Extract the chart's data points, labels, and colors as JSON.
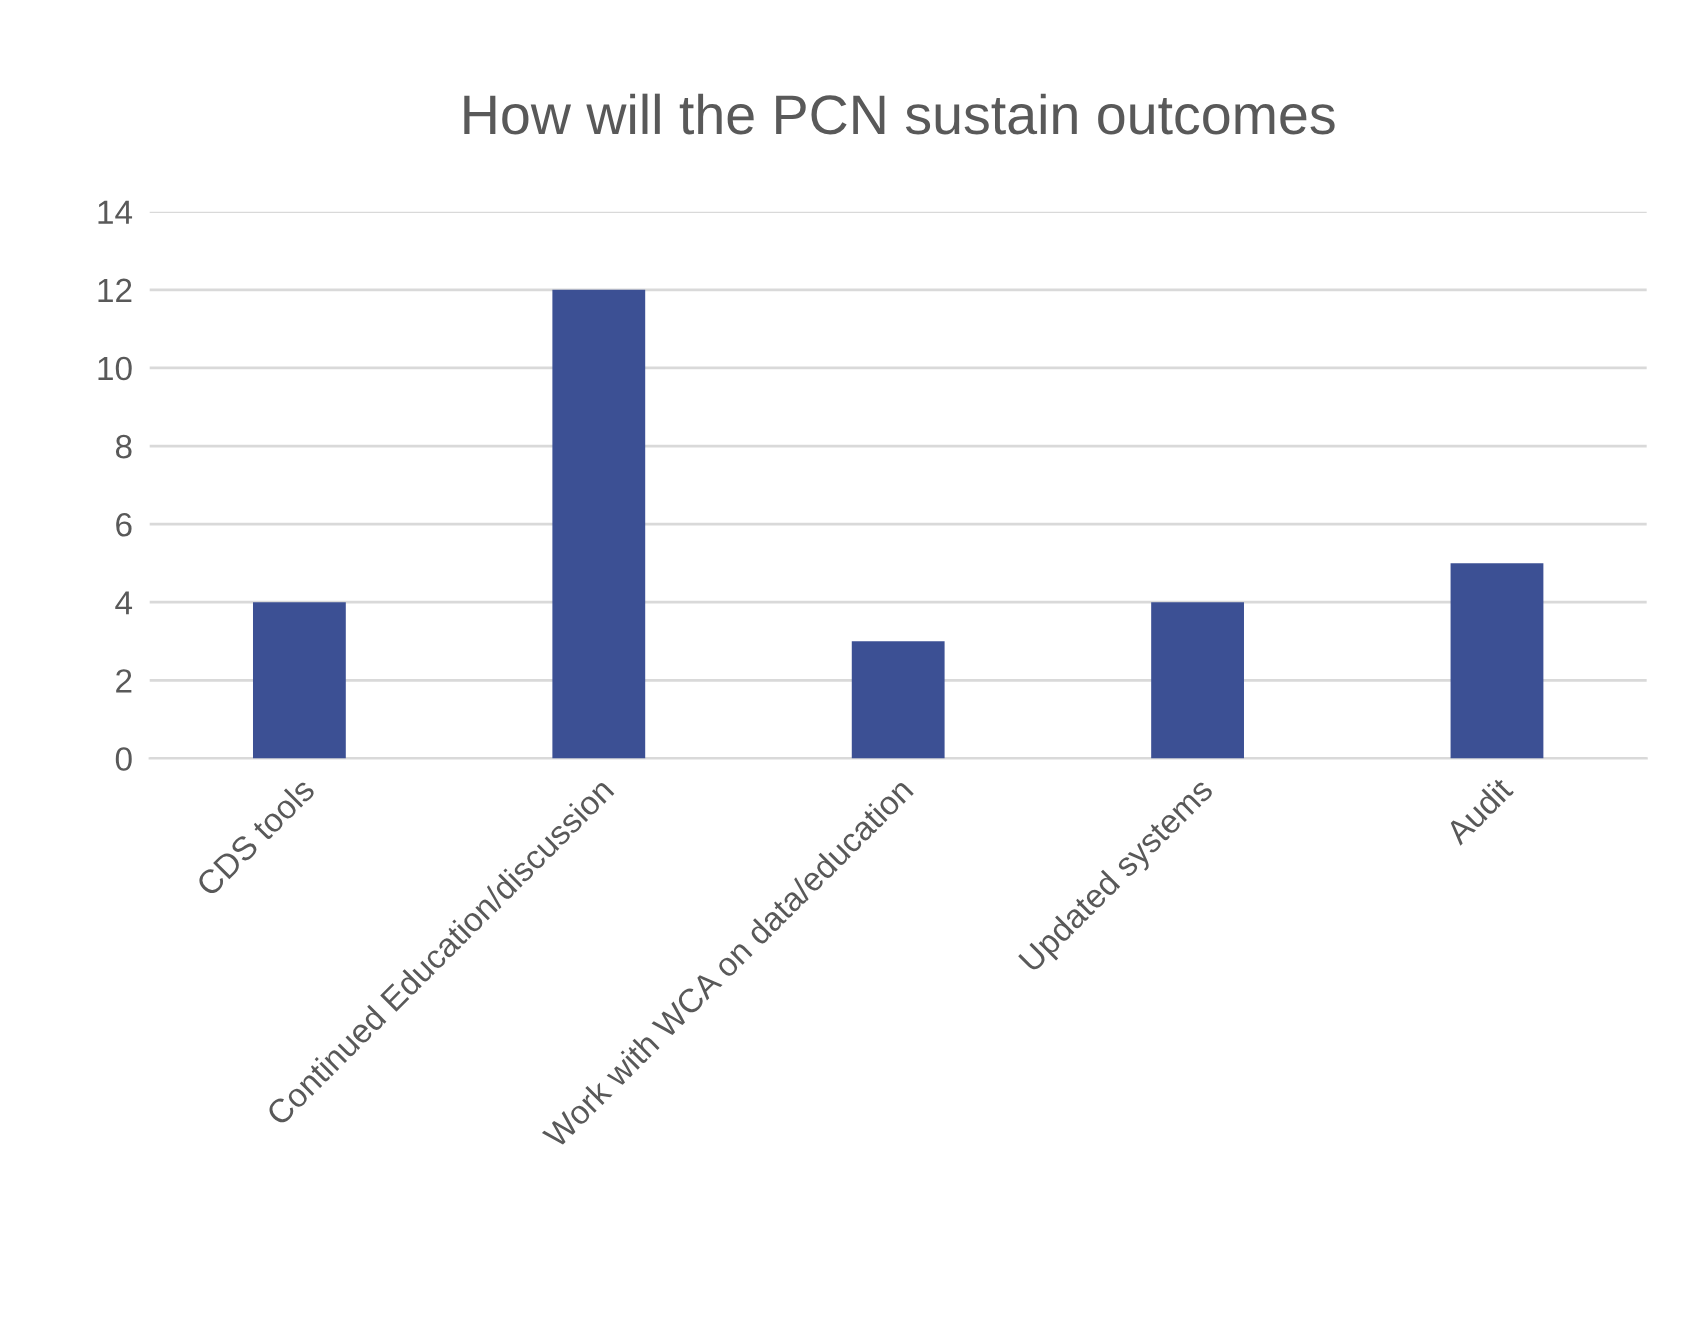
{
  "chart_data": {
    "type": "bar",
    "title": "How will the PCN sustain outcomes",
    "categories": [
      "CDS tools",
      "Continued Education/discussion",
      "Work with WCA on data/education",
      "Updated systems",
      "Audit"
    ],
    "values": [
      4,
      12,
      3,
      4,
      5
    ],
    "color": "#3c5094",
    "ylim": [
      0,
      14
    ],
    "yticks": [
      0,
      2,
      4,
      6,
      8,
      10,
      12,
      14
    ],
    "grid": "y",
    "legend": false
  }
}
